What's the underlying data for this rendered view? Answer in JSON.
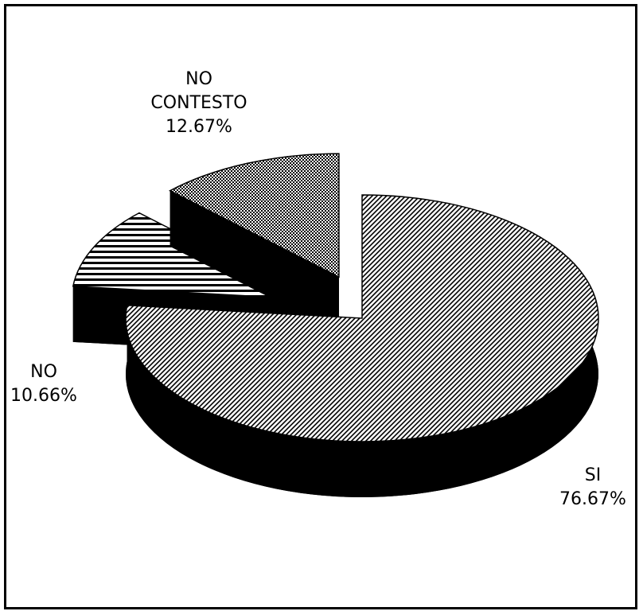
{
  "chart_data": {
    "type": "pie",
    "categories": [
      "SI",
      "NO",
      "NO CONTESTO"
    ],
    "values": [
      76.67,
      10.66,
      12.67
    ],
    "value_labels": [
      "76.67%",
      "10.66%",
      "12.67%"
    ],
    "exploded": [
      false,
      true,
      true
    ]
  }
}
